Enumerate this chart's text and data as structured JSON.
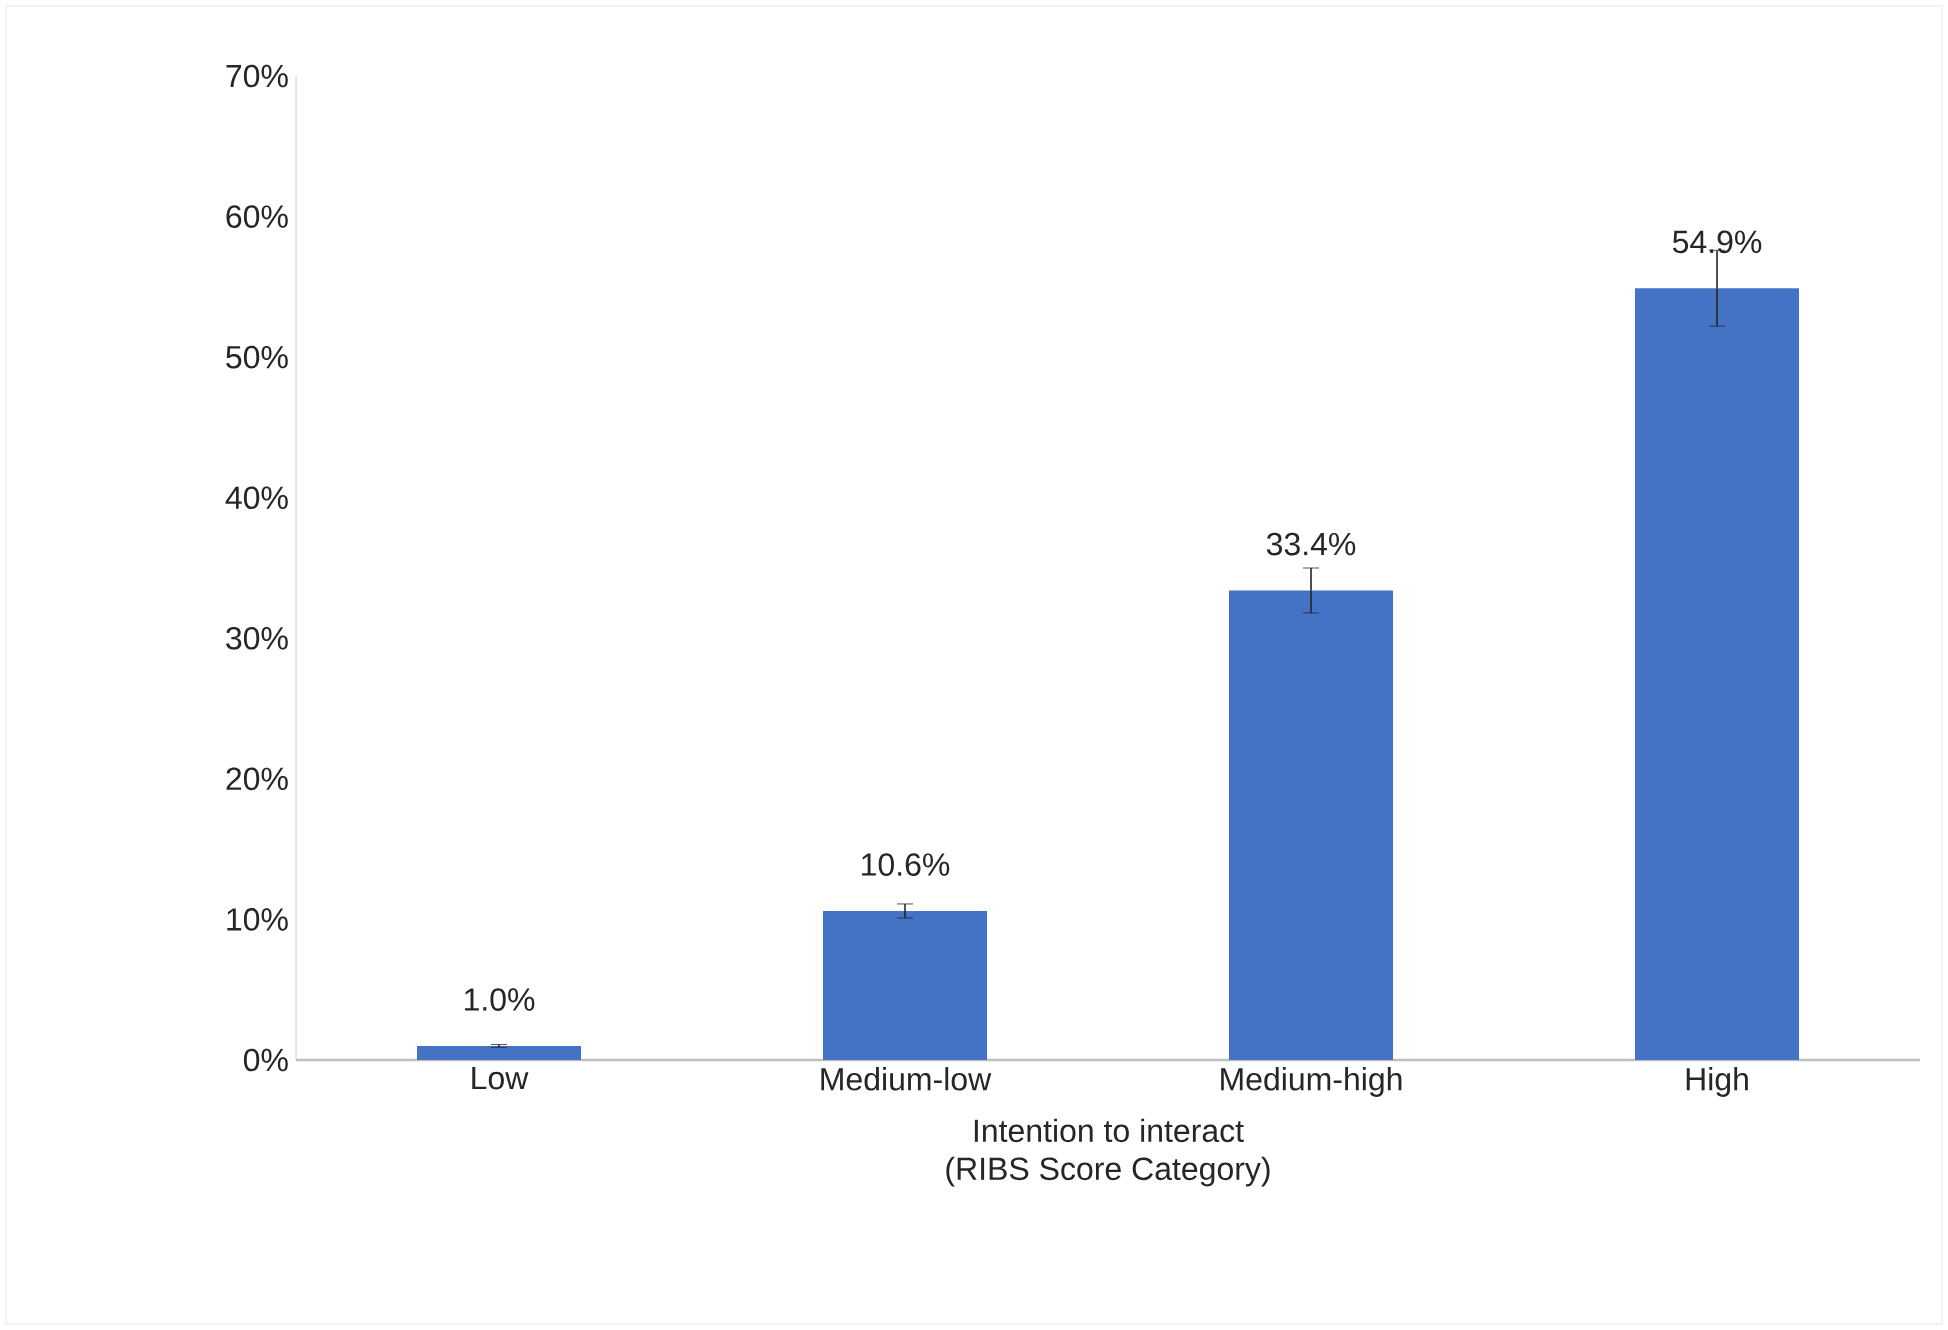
{
  "chart_data": {
    "type": "bar",
    "xlabel": "Intention to interact\n(RIBS Score Category)",
    "categories": [
      "Low",
      "Medium-low",
      "Medium-high",
      "High"
    ],
    "values": [
      1.0,
      10.6,
      33.4,
      54.9
    ],
    "value_labels": [
      "1.0%",
      "10.6%",
      "33.4%",
      "54.9%"
    ],
    "errors": [
      0.1,
      0.5,
      1.6,
      2.7
    ],
    "color": "#4472c4",
    "ylim": [
      0,
      70
    ],
    "yticks": [
      {
        "value": 0,
        "label": "0%"
      },
      {
        "value": 10,
        "label": "10%"
      },
      {
        "value": 20,
        "label": "20%"
      },
      {
        "value": 30,
        "label": "30%"
      },
      {
        "value": 40,
        "label": "40%"
      },
      {
        "value": 50,
        "label": "50%"
      },
      {
        "value": 60,
        "label": "60%"
      },
      {
        "value": 70,
        "label": "70%"
      }
    ],
    "grid": false
  }
}
